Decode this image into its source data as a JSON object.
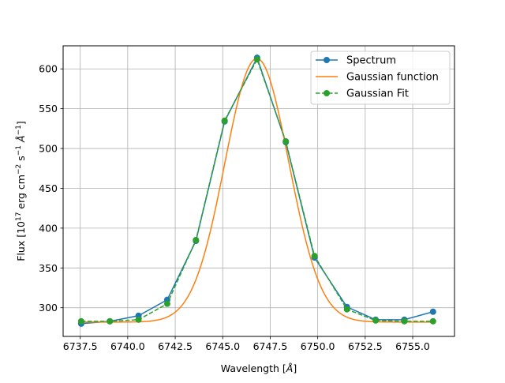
{
  "chart_data": {
    "type": "line",
    "xlabel": "Wavelength [Å]",
    "ylabel": "Flux [10^17 erg cm^-2 s^-1 Å^-1]",
    "xlim": [
      6736.6,
      6757.2
    ],
    "ylim": [
      264,
      629
    ],
    "x_ticks": [
      6737.5,
      6740.0,
      6742.5,
      6745.0,
      6747.5,
      6750.0,
      6752.5,
      6755.0
    ],
    "x_tick_labels": [
      "6737.5",
      "6740.0",
      "6742.5",
      "6745.0",
      "6747.5",
      "6750.0",
      "6752.5",
      "6755.0"
    ],
    "y_ticks": [
      300,
      350,
      400,
      450,
      500,
      550,
      600
    ],
    "y_tick_labels": [
      "300",
      "350",
      "400",
      "450",
      "500",
      "550",
      "600"
    ],
    "grid": true,
    "legend_position": "top-right",
    "series": [
      {
        "name": "Spectrum",
        "color": "#1f77b4",
        "style": "solid-with-markers",
        "x": [
          6737.55,
          6739.06,
          6740.57,
          6742.08,
          6743.59,
          6745.1,
          6746.81,
          6748.32,
          6749.83,
          6751.54,
          6753.05,
          6754.56,
          6756.07
        ],
        "y": [
          280,
          283,
          290,
          310,
          384,
          534,
          614,
          508,
          363,
          301,
          285,
          285,
          295
        ]
      },
      {
        "name": "Gaussian function",
        "color": "#ff7f0e",
        "style": "solid",
        "model": {
          "amplitude": 331,
          "center": 6746.8,
          "sigma": 1.68,
          "offset": 282
        },
        "x_range": [
          6737.55,
          6756.07
        ]
      },
      {
        "name": "Gaussian Fit",
        "color": "#2ca02c",
        "style": "dashed-with-markers",
        "x": [
          6737.55,
          6739.06,
          6740.57,
          6742.08,
          6743.59,
          6745.1,
          6746.81,
          6748.32,
          6749.83,
          6751.54,
          6753.05,
          6754.56,
          6756.07
        ],
        "y": [
          283,
          283,
          285,
          305,
          385,
          535,
          612,
          509,
          365,
          298,
          284,
          283,
          283
        ]
      }
    ]
  }
}
